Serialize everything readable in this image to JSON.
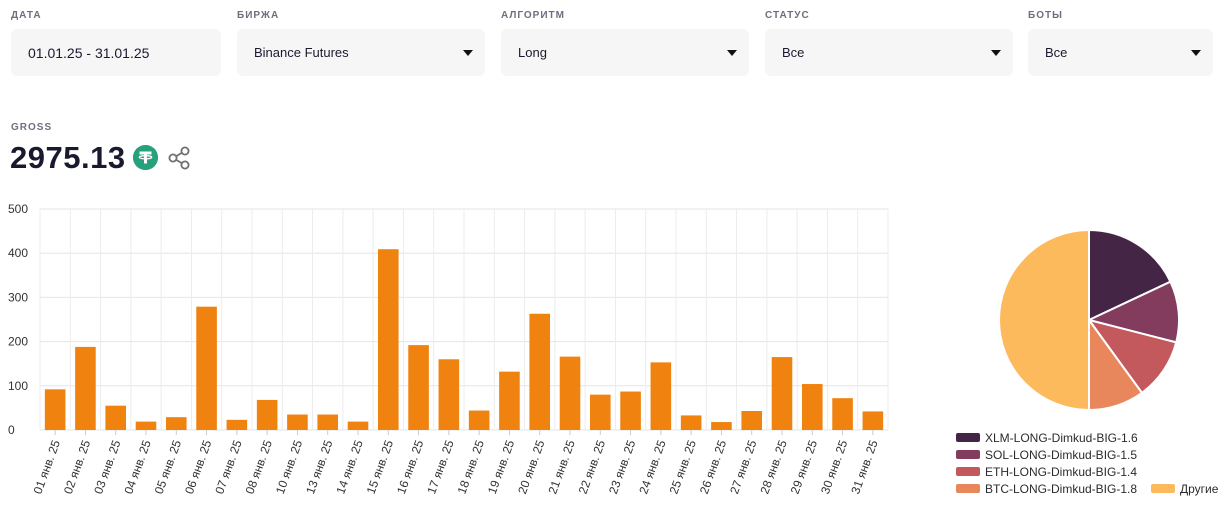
{
  "filters": {
    "date": {
      "label": "ДАТА",
      "value": "01.01.25 - 31.01.25"
    },
    "exchange": {
      "label": "БИРЖА",
      "value": "Binance Futures"
    },
    "algorithm": {
      "label": "АЛГОРИТМ",
      "value": "Long"
    },
    "status": {
      "label": "СТАТУС",
      "value": "Все"
    },
    "bots": {
      "label": "БОТЫ",
      "value": "Все"
    }
  },
  "gross": {
    "label": "GROSS",
    "value": "2975.13",
    "currency_icon": "tether-icon"
  },
  "chart_data": [
    {
      "type": "bar",
      "title": "",
      "xlabel": "",
      "ylabel": "",
      "ylim": [
        0,
        500
      ],
      "yticks": [
        "0",
        "100",
        "200",
        "300",
        "400",
        "500"
      ],
      "grid": true,
      "bar_color": "#f0820f",
      "categories": [
        "01 янв. 25",
        "02 янв. 25",
        "03 янв. 25",
        "04 янв. 25",
        "05 янв. 25",
        "06 янв. 25",
        "07 янв. 25",
        "08 янв. 25",
        "10 янв. 25",
        "13 янв. 25",
        "14 янв. 25",
        "15 янв. 25",
        "16 янв. 25",
        "17 янв. 25",
        "18 янв. 25",
        "19 янв. 25",
        "20 янв. 25",
        "21 янв. 25",
        "22 янв. 25",
        "23 янв. 25",
        "24 янв. 25",
        "25 янв. 25",
        "26 янв. 25",
        "27 янв. 25",
        "28 янв. 25",
        "29 янв. 25",
        "30 янв. 25",
        "31 янв. 25"
      ],
      "values": [
        92,
        188,
        55,
        19,
        29,
        279,
        23,
        68,
        35,
        35,
        19,
        409,
        192,
        160,
        44,
        132,
        263,
        166,
        80,
        87,
        153,
        33,
        18,
        43,
        165,
        104,
        72,
        42
      ]
    },
    {
      "type": "pie",
      "legend_position": "bottom",
      "slices": [
        {
          "label": "XLM-LONG-Dimkud-BIG-1.6",
          "value": 18,
          "color": "#452545"
        },
        {
          "label": "SOL-LONG-Dimkud-BIG-1.5",
          "value": 11,
          "color": "#833b5e"
        },
        {
          "label": "ETH-LONG-Dimkud-BIG-1.4",
          "value": 11,
          "color": "#c3585d"
        },
        {
          "label": "BTC-LONG-Dimkud-BIG-1.8",
          "value": 10,
          "color": "#e8875c"
        },
        {
          "label": "Другие",
          "value": 50,
          "color": "#fcba5d"
        }
      ]
    }
  ]
}
